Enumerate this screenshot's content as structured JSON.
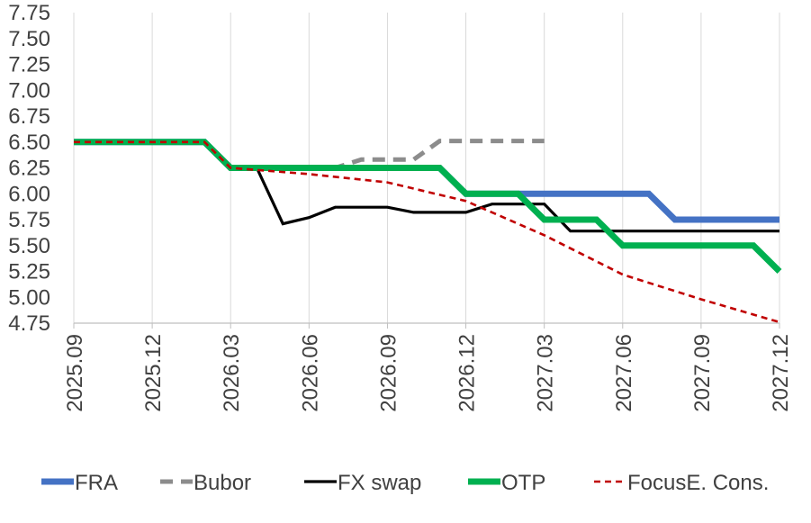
{
  "chart_data": {
    "type": "line",
    "title": "",
    "xlabel": "",
    "ylabel": "",
    "ylim": [
      4.75,
      7.75
    ],
    "yticks": [
      "4.75",
      "5.00",
      "5.25",
      "5.50",
      "5.75",
      "6.00",
      "6.25",
      "6.50",
      "6.75",
      "7.00",
      "7.25",
      "7.50",
      "7.75"
    ],
    "xticks": [
      "2025.09",
      "2025.12",
      "2026.03",
      "2026.06",
      "2026.09",
      "2026.12",
      "2027.03",
      "2027.06",
      "2027.09",
      "2027.12"
    ],
    "grid": "vertical",
    "legend": "bottom",
    "series": [
      {
        "name": "FRA",
        "color": "#4472C4",
        "style": "solid-thick",
        "points": [
          [
            "2025.09",
            6.5
          ],
          [
            "2026.02",
            6.5
          ],
          [
            "2026.03",
            6.25
          ],
          [
            "2026.11",
            6.25
          ],
          [
            "2026.12",
            6.0
          ],
          [
            "2027.07",
            6.0
          ],
          [
            "2027.08",
            5.75
          ],
          [
            "2027.12",
            5.75
          ]
        ]
      },
      {
        "name": "Bubor",
        "color": "#8C8C8C",
        "style": "dashed",
        "points": [
          [
            "2025.09",
            6.5
          ],
          [
            "2026.02",
            6.5
          ],
          [
            "2026.03",
            6.25
          ],
          [
            "2026.07",
            6.25
          ],
          [
            "2026.08",
            6.33
          ],
          [
            "2026.10",
            6.33
          ],
          [
            "2026.11",
            6.51
          ],
          [
            "2027.03",
            6.51
          ]
        ]
      },
      {
        "name": "FX swap",
        "color": "#000000",
        "style": "solid",
        "points": [
          [
            "2025.09",
            6.5
          ],
          [
            "2026.02",
            6.5
          ],
          [
            "2026.03",
            6.25
          ],
          [
            "2026.04",
            6.25
          ],
          [
            "2026.05",
            5.71
          ],
          [
            "2026.06",
            5.77
          ],
          [
            "2026.07",
            5.87
          ],
          [
            "2026.09",
            5.87
          ],
          [
            "2026.10",
            5.82
          ],
          [
            "2026.12",
            5.82
          ],
          [
            "2027.01",
            5.9
          ],
          [
            "2027.03",
            5.9
          ],
          [
            "2027.04",
            5.64
          ],
          [
            "2027.12",
            5.64
          ]
        ]
      },
      {
        "name": "OTP",
        "color": "#00B050",
        "style": "solid-thick",
        "points": [
          [
            "2025.09",
            6.5
          ],
          [
            "2026.02",
            6.5
          ],
          [
            "2026.03",
            6.25
          ],
          [
            "2026.11",
            6.25
          ],
          [
            "2026.12",
            6.0
          ],
          [
            "2027.02",
            6.0
          ],
          [
            "2027.03",
            5.75
          ],
          [
            "2027.05",
            5.75
          ],
          [
            "2027.06",
            5.5
          ],
          [
            "2027.11",
            5.5
          ],
          [
            "2027.12",
            5.25
          ]
        ]
      },
      {
        "name": "FocusE. Cons.",
        "color": "#C00000",
        "style": "dotted",
        "points": [
          [
            "2025.09",
            6.5
          ],
          [
            "2026.02",
            6.5
          ],
          [
            "2026.03",
            6.25
          ],
          [
            "2026.06",
            6.19
          ],
          [
            "2026.09",
            6.11
          ],
          [
            "2026.12",
            5.93
          ],
          [
            "2027.03",
            5.6
          ],
          [
            "2027.06",
            5.22
          ],
          [
            "2027.09",
            4.98
          ],
          [
            "2027.12",
            4.76
          ]
        ]
      }
    ]
  }
}
